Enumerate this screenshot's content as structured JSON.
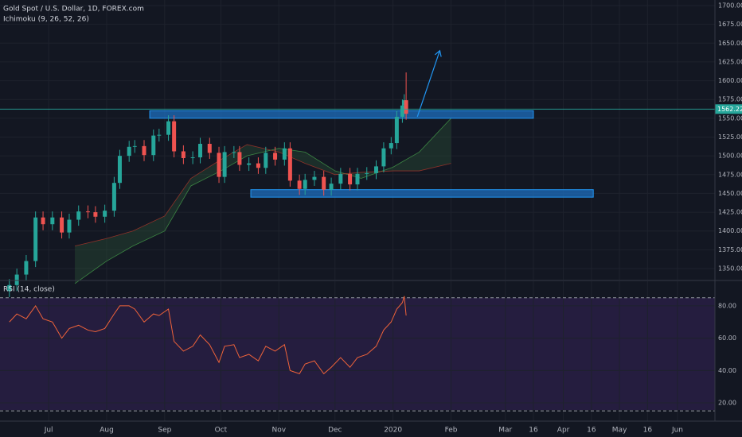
{
  "chart_data": [
    {
      "type": "candlestick",
      "title": "Gold Spot / U.S. Dollar, 1D, FOREX.com",
      "subtitle": "Ichimoku (9, 26, 52, 26)",
      "x": [
        "2019-06-10",
        "2019-06-14",
        "2019-06-19",
        "2019-06-24",
        "2019-06-28",
        "2019-07-03",
        "2019-07-08",
        "2019-07-12",
        "2019-07-17",
        "2019-07-22",
        "2019-07-26",
        "2019-07-31",
        "2019-08-05",
        "2019-08-08",
        "2019-08-13",
        "2019-08-16",
        "2019-08-21",
        "2019-08-26",
        "2019-08-29",
        "2019-09-03",
        "2019-09-06",
        "2019-09-11",
        "2019-09-16",
        "2019-09-20",
        "2019-09-25",
        "2019-09-30",
        "2019-10-03",
        "2019-10-08",
        "2019-10-11",
        "2019-10-16",
        "2019-10-21",
        "2019-10-25",
        "2019-10-30",
        "2019-11-04",
        "2019-11-07",
        "2019-11-12",
        "2019-11-15",
        "2019-11-20",
        "2019-11-25",
        "2019-11-29",
        "2019-12-04",
        "2019-12-09",
        "2019-12-13",
        "2019-12-18",
        "2019-12-23",
        "2019-12-27",
        "2019-12-31",
        "2020-01-03",
        "2020-01-06",
        "2020-01-07",
        "2020-01-08"
      ],
      "open": [
        1320,
        1328,
        1342,
        1360,
        1418,
        1409,
        1418,
        1398,
        1415,
        1426,
        1425,
        1419,
        1427,
        1464,
        1500,
        1512,
        1513,
        1501,
        1527,
        1528,
        1546,
        1506,
        1497,
        1498,
        1516,
        1504,
        1472,
        1505,
        1505,
        1488,
        1490,
        1484,
        1504,
        1495,
        1510,
        1467,
        1456,
        1468,
        1472,
        1455,
        1463,
        1476,
        1462,
        1476,
        1477,
        1486,
        1510,
        1517,
        1552,
        1567,
        1574
      ],
      "high": [
        1336,
        1350,
        1368,
        1426,
        1426,
        1426,
        1426,
        1423,
        1434,
        1434,
        1433,
        1435,
        1472,
        1508,
        1520,
        1521,
        1521,
        1535,
        1536,
        1554,
        1554,
        1514,
        1506,
        1524,
        1524,
        1512,
        1513,
        1513,
        1513,
        1498,
        1498,
        1512,
        1512,
        1518,
        1518,
        1475,
        1476,
        1480,
        1480,
        1471,
        1484,
        1484,
        1484,
        1485,
        1494,
        1518,
        1525,
        1560,
        1575,
        1582,
        1611
      ],
      "low": [
        1312,
        1320,
        1334,
        1352,
        1401,
        1401,
        1390,
        1390,
        1407,
        1417,
        1411,
        1411,
        1419,
        1456,
        1492,
        1504,
        1493,
        1493,
        1519,
        1520,
        1498,
        1489,
        1489,
        1490,
        1496,
        1464,
        1464,
        1497,
        1480,
        1480,
        1476,
        1476,
        1487,
        1487,
        1459,
        1448,
        1448,
        1460,
        1447,
        1447,
        1455,
        1454,
        1454,
        1468,
        1469,
        1478,
        1502,
        1509,
        1544,
        1559,
        1548
      ],
      "close": [
        1328,
        1342,
        1360,
        1418,
        1409,
        1418,
        1398,
        1415,
        1426,
        1425,
        1419,
        1427,
        1464,
        1500,
        1512,
        1513,
        1501,
        1527,
        1528,
        1546,
        1506,
        1497,
        1498,
        1516,
        1504,
        1472,
        1505,
        1505,
        1488,
        1490,
        1484,
        1504,
        1495,
        1510,
        1467,
        1456,
        1468,
        1472,
        1455,
        1463,
        1476,
        1462,
        1476,
        1477,
        1486,
        1510,
        1517,
        1552,
        1567,
        1574,
        1556
      ],
      "up_color": "#26a69a",
      "down_color": "#ef5350",
      "cloud": {
        "x": [
          "2019-07-15",
          "2019-08-01",
          "2019-08-15",
          "2019-09-01",
          "2019-09-15",
          "2019-10-01",
          "2019-10-15",
          "2019-11-01",
          "2019-11-15",
          "2019-12-01",
          "2019-12-15",
          "2020-01-01",
          "2020-01-15",
          "2020-02-01"
        ],
        "span_a": [
          1330,
          1360,
          1380,
          1400,
          1460,
          1480,
          1500,
          1510,
          1505,
          1480,
          1470,
          1485,
          1505,
          1550
        ],
        "span_b": [
          1380,
          1390,
          1400,
          1420,
          1470,
          1495,
          1515,
          1505,
          1490,
          1475,
          1478,
          1480,
          1480,
          1490
        ]
      },
      "zones": [
        {
          "x0": "2019-08-24",
          "x1": "2020-03-16",
          "y0": 1550,
          "y1": 1560
        },
        {
          "x0": "2019-10-17",
          "x1": "2020-04-17",
          "y0": 1445,
          "y1": 1455
        }
      ],
      "arrow": {
        "x0": "2020-01-14",
        "y0": 1552,
        "x1": "2020-01-26",
        "y1": 1640
      },
      "last_price": 1562.22,
      "xlim": [
        "2019-06-05",
        "2020-06-21"
      ],
      "ylim": [
        1335.2,
        1707.4
      ],
      "yticks": [
        {
          "value": 1350,
          "label": "1350.00"
        },
        {
          "value": 1375,
          "label": "1375.00"
        },
        {
          "value": 1400,
          "label": "1400.00"
        },
        {
          "value": 1425,
          "label": "1425.00"
        },
        {
          "value": 1450,
          "label": "1450.00"
        },
        {
          "value": 1475,
          "label": "1475.00"
        },
        {
          "value": 1500,
          "label": "1500.00"
        },
        {
          "value": 1525,
          "label": "1525.00"
        },
        {
          "value": 1550,
          "label": "1550.00"
        },
        {
          "value": 1575,
          "label": "1575.00"
        },
        {
          "value": 1600,
          "label": "1600.00"
        },
        {
          "value": 1625,
          "label": "1625.00"
        },
        {
          "value": 1650,
          "label": "1650.00"
        },
        {
          "value": 1675,
          "label": "1675.00"
        },
        {
          "value": 1700,
          "label": "1700.00"
        }
      ],
      "xticks": [
        {
          "value": "2019-07-01",
          "label": "Jul"
        },
        {
          "value": "2019-08-01",
          "label": "Aug"
        },
        {
          "value": "2019-09-01",
          "label": "Sep"
        },
        {
          "value": "2019-10-01",
          "label": "Oct"
        },
        {
          "value": "2019-11-01",
          "label": "Nov"
        },
        {
          "value": "2019-12-01",
          "label": "Dec"
        },
        {
          "value": "2020-01-01",
          "label": "2020"
        },
        {
          "value": "2020-02-01",
          "label": "Feb"
        },
        {
          "value": "2020-03-01",
          "label": "Mar"
        },
        {
          "value": "2020-03-16",
          "label": "16"
        },
        {
          "value": "2020-04-01",
          "label": "Apr"
        },
        {
          "value": "2020-04-16",
          "label": "16"
        },
        {
          "value": "2020-05-01",
          "label": "May"
        },
        {
          "value": "2020-05-16",
          "label": "16"
        },
        {
          "value": "2020-06-01",
          "label": "Jun"
        }
      ],
      "grid": true
    },
    {
      "type": "line",
      "title": "RSI (14, close)",
      "x": [
        "2019-06-10",
        "2019-06-14",
        "2019-06-19",
        "2019-06-24",
        "2019-06-28",
        "2019-07-03",
        "2019-07-08",
        "2019-07-12",
        "2019-07-17",
        "2019-07-22",
        "2019-07-26",
        "2019-07-31",
        "2019-08-05",
        "2019-08-08",
        "2019-08-13",
        "2019-08-16",
        "2019-08-21",
        "2019-08-26",
        "2019-08-29",
        "2019-09-03",
        "2019-09-06",
        "2019-09-11",
        "2019-09-16",
        "2019-09-20",
        "2019-09-25",
        "2019-09-30",
        "2019-10-03",
        "2019-10-08",
        "2019-10-11",
        "2019-10-16",
        "2019-10-21",
        "2019-10-25",
        "2019-10-30",
        "2019-11-04",
        "2019-11-07",
        "2019-11-12",
        "2019-11-15",
        "2019-11-20",
        "2019-11-25",
        "2019-11-29",
        "2019-12-04",
        "2019-12-09",
        "2019-12-13",
        "2019-12-18",
        "2019-12-23",
        "2019-12-27",
        "2019-12-31",
        "2020-01-03",
        "2020-01-06",
        "2020-01-07",
        "2020-01-08"
      ],
      "values": [
        70,
        75,
        72,
        80,
        72,
        70,
        60,
        66,
        68,
        65,
        64,
        66,
        75,
        80,
        80,
        78,
        70,
        75,
        74,
        78,
        58,
        52,
        55,
        62,
        56,
        45,
        55,
        56,
        48,
        50,
        46,
        55,
        52,
        56,
        40,
        38,
        44,
        46,
        38,
        42,
        48,
        42,
        48,
        50,
        55,
        65,
        70,
        78,
        82,
        86,
        74
      ],
      "color": "#f0633a",
      "bands": [
        85,
        15
      ],
      "ylim": [
        8.7,
        95.2
      ],
      "yticks": [
        {
          "value": 20,
          "label": "20.00"
        },
        {
          "value": 40,
          "label": "40.00"
        },
        {
          "value": 60,
          "label": "60.00"
        },
        {
          "value": 80,
          "label": "80.00"
        }
      ],
      "grid": true
    }
  ]
}
